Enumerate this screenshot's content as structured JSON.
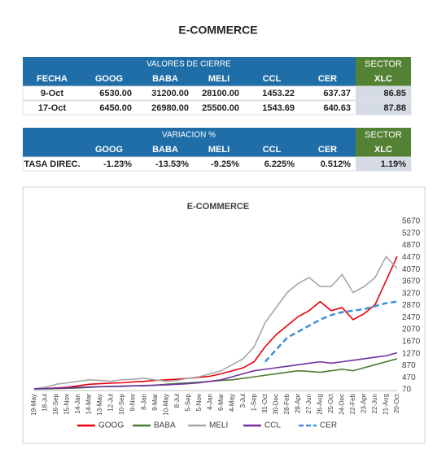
{
  "title": "E-COMMERCE",
  "table1": {
    "header": "VALORES DE CIERRE",
    "sector": "SECTOR",
    "columns": [
      "FECHA",
      "GOOG",
      "BABA",
      "MELI",
      "CCL",
      "CER",
      "XLC"
    ],
    "rows": [
      [
        "9-Oct",
        "6530.00",
        "31200.00",
        "28100.00",
        "1453.22",
        "637.37",
        "86.85"
      ],
      [
        "17-Oct",
        "6450.00",
        "26980.00",
        "25500.00",
        "1543.69",
        "640.63",
        "87.88"
      ]
    ]
  },
  "table2": {
    "header": "VARIACION %",
    "sector": "SECTOR",
    "columns": [
      "GOOG",
      "BABA",
      "MELI",
      "CCL",
      "CER",
      "XLC"
    ],
    "rows": [
      [
        "TASA DIREC.",
        "-1.23%",
        "-13.53%",
        "-9.25%",
        "6.225%",
        "0.512%",
        "1.19%"
      ]
    ]
  },
  "chart_data": {
    "type": "line",
    "title": "E-COMMERCE",
    "categories": [
      "19-May",
      "18-Jul",
      "16-Sep",
      "15-Nov",
      "14-Jan",
      "14-Mar",
      "13-May",
      "12-Jul",
      "10-Sep",
      "9-Nov",
      "8-Jan",
      "9-Mar",
      "10-May",
      "8-Jul",
      "5-Sep",
      "5-Nov",
      "4-Jan",
      "6-Mar",
      "4-May",
      "3-Jul",
      "1-Sep",
      "31-Oct",
      "30-Dec",
      "28-Feb",
      "28-Apr",
      "27-Jun",
      "26-Aug",
      "25-Oct",
      "24-Dec",
      "22-Feb",
      "23-Apr",
      "22-Jun",
      "21-Aug",
      "20-Oct"
    ],
    "series": [
      {
        "name": "GOOG",
        "color": "#e8000b",
        "dash": false,
        "values": [
          100,
          110,
          130,
          150,
          200,
          250,
          270,
          290,
          300,
          330,
          350,
          380,
          400,
          420,
          450,
          480,
          520,
          600,
          700,
          800,
          1000,
          1500,
          1900,
          2200,
          2500,
          2700,
          3000,
          2700,
          2800,
          2400,
          2600,
          2900,
          3700,
          4500
        ]
      },
      {
        "name": "BABA",
        "color": "#4a7c2f",
        "dash": false,
        "values": [
          100,
          100,
          110,
          120,
          130,
          150,
          170,
          180,
          180,
          200,
          200,
          220,
          250,
          280,
          300,
          320,
          350,
          380,
          400,
          450,
          500,
          550,
          600,
          650,
          700,
          680,
          650,
          700,
          750,
          700,
          800,
          900,
          1000,
          1100
        ]
      },
      {
        "name": "MELI",
        "color": "#a6a6a6",
        "dash": false,
        "values": [
          100,
          150,
          250,
          300,
          350,
          400,
          380,
          350,
          400,
          420,
          450,
          400,
          350,
          380,
          450,
          500,
          600,
          700,
          900,
          1100,
          1500,
          2300,
          2800,
          3300,
          3600,
          3800,
          3500,
          3500,
          3900,
          3300,
          3500,
          3800,
          4500,
          4100
        ]
      },
      {
        "name": "CCL",
        "color": "#7030a0",
        "dash": false,
        "values": [
          100,
          110,
          120,
          130,
          150,
          160,
          170,
          180,
          190,
          200,
          210,
          220,
          230,
          250,
          270,
          300,
          350,
          400,
          500,
          600,
          700,
          750,
          800,
          850,
          900,
          950,
          1000,
          950,
          1000,
          1050,
          1100,
          1150,
          1200,
          1300
        ]
      },
      {
        "name": "CER",
        "color": "#3d8fd8",
        "dash": true,
        "values": [
          null,
          null,
          null,
          null,
          null,
          null,
          null,
          null,
          null,
          null,
          null,
          null,
          null,
          null,
          null,
          null,
          null,
          null,
          null,
          null,
          null,
          1000,
          1400,
          1800,
          2000,
          2200,
          2400,
          2550,
          2650,
          2700,
          2750,
          2850,
          2950,
          3000
        ]
      }
    ],
    "ylim": [
      70,
      5670
    ],
    "yticks": [
      70,
      470,
      870,
      1270,
      1670,
      2070,
      2470,
      2870,
      3270,
      3670,
      4070,
      4470,
      4870,
      5270,
      5670
    ],
    "grid": false,
    "legend": "bottom"
  }
}
